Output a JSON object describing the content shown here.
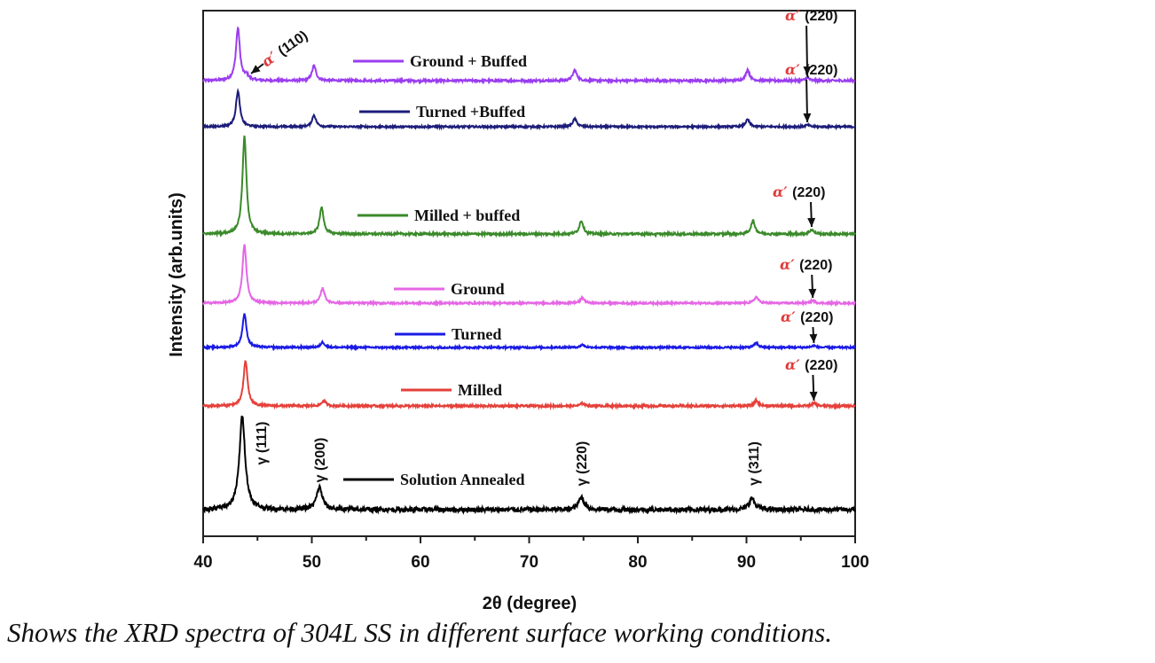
{
  "chart_data": {
    "type": "line",
    "title": "",
    "xlabel": "2θ (degree)",
    "ylabel": "Intensity (arb.units)",
    "xlim": [
      40,
      100
    ],
    "xticks": [
      "40",
      "50",
      "60",
      "70",
      "80",
      "90",
      "100"
    ],
    "y_ticks_shown": false,
    "grid": false,
    "layout": "stacked offset spectra",
    "series": [
      {
        "name": "Ground + Buffed",
        "color": "#9a3df0",
        "peaks": [
          {
            "two_theta": 43.2,
            "intensity": 59
          },
          {
            "two_theta": 44.0,
            "intensity": 5
          },
          {
            "two_theta": 50.2,
            "intensity": 17
          },
          {
            "two_theta": 74.2,
            "intensity": 12
          },
          {
            "two_theta": 90.1,
            "intensity": 12
          },
          {
            "two_theta": 95.6,
            "intensity": 3
          }
        ]
      },
      {
        "name": "Turned +Buffed",
        "color": "#1c1c7a",
        "peaks": [
          {
            "two_theta": 43.2,
            "intensity": 40
          },
          {
            "two_theta": 50.2,
            "intensity": 13
          },
          {
            "two_theta": 74.2,
            "intensity": 9
          },
          {
            "two_theta": 90.1,
            "intensity": 8
          },
          {
            "two_theta": 95.6,
            "intensity": 2
          }
        ]
      },
      {
        "name": "Milled + buffed",
        "color": "#3a8a2a",
        "peaks": [
          {
            "two_theta": 43.8,
            "intensity": 110
          },
          {
            "two_theta": 50.9,
            "intensity": 30
          },
          {
            "two_theta": 74.8,
            "intensity": 15
          },
          {
            "two_theta": 90.6,
            "intensity": 15
          },
          {
            "two_theta": 96.0,
            "intensity": 5
          }
        ]
      },
      {
        "name": "Ground",
        "color": "#e566e5",
        "peaks": [
          {
            "two_theta": 43.8,
            "intensity": 66
          },
          {
            "two_theta": 51.0,
            "intensity": 17
          },
          {
            "two_theta": 74.9,
            "intensity": 6
          },
          {
            "two_theta": 90.9,
            "intensity": 7
          },
          {
            "two_theta": 96.1,
            "intensity": 3
          }
        ]
      },
      {
        "name": "Turned",
        "color": "#1a1ae6",
        "peaks": [
          {
            "two_theta": 43.8,
            "intensity": 38
          },
          {
            "two_theta": 51.0,
            "intensity": 6
          },
          {
            "two_theta": 74.9,
            "intensity": 3
          },
          {
            "two_theta": 90.9,
            "intensity": 5
          },
          {
            "two_theta": 96.2,
            "intensity": 2
          }
        ]
      },
      {
        "name": "Milled",
        "color": "#e5403a",
        "peaks": [
          {
            "two_theta": 43.9,
            "intensity": 51
          },
          {
            "two_theta": 51.1,
            "intensity": 6
          },
          {
            "two_theta": 74.9,
            "intensity": 3
          },
          {
            "two_theta": 90.9,
            "intensity": 6
          },
          {
            "two_theta": 96.2,
            "intensity": 3
          }
        ]
      },
      {
        "name": "Solution Annealed",
        "color": "#000000",
        "peaks": [
          {
            "two_theta": 43.6,
            "intensity": 105
          },
          {
            "two_theta": 50.7,
            "intensity": 25
          },
          {
            "two_theta": 74.8,
            "intensity": 14
          },
          {
            "two_theta": 90.5,
            "intensity": 13
          }
        ]
      }
    ],
    "annotations": {
      "alpha_symbol": "α′",
      "alpha_110": "(110)",
      "alpha_220": "(220)",
      "gamma_labels": [
        "γ (111)",
        "γ (200)",
        "γ (220)",
        "γ (311)"
      ]
    }
  },
  "caption": "Shows the XRD spectra of 304L SS in different surface working conditions."
}
